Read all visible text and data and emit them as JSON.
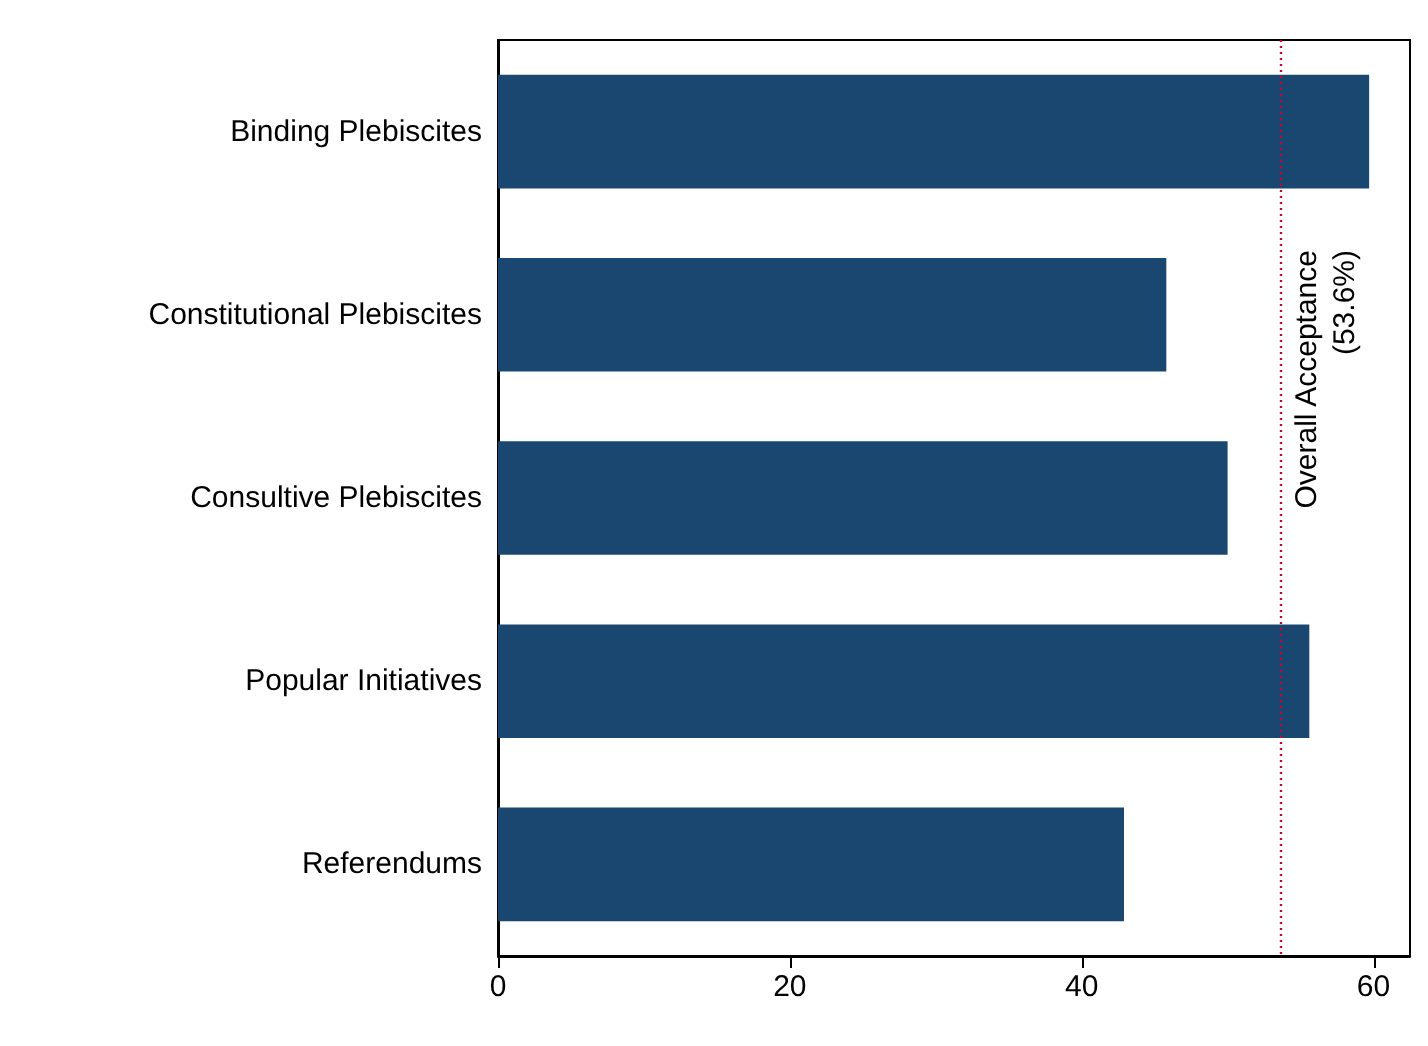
{
  "chart_data": {
    "type": "bar",
    "orientation": "horizontal",
    "categories": [
      "Binding Plebiscites",
      "Constitutional Plebiscites",
      "Consultive Plebiscites",
      "Popular Initiatives",
      "Referendums"
    ],
    "values": [
      59.7,
      45.8,
      50.0,
      55.6,
      42.9
    ],
    "color": "#1a476f",
    "xlim": [
      0,
      62.5
    ],
    "xticks": [
      0,
      20,
      40,
      60
    ],
    "ref_lines": [
      {
        "axis": "x",
        "value": 53.6,
        "label": "Overall Acceptance\n(53.6%)",
        "color": "#c10534",
        "line_style": "dotted"
      }
    ]
  }
}
